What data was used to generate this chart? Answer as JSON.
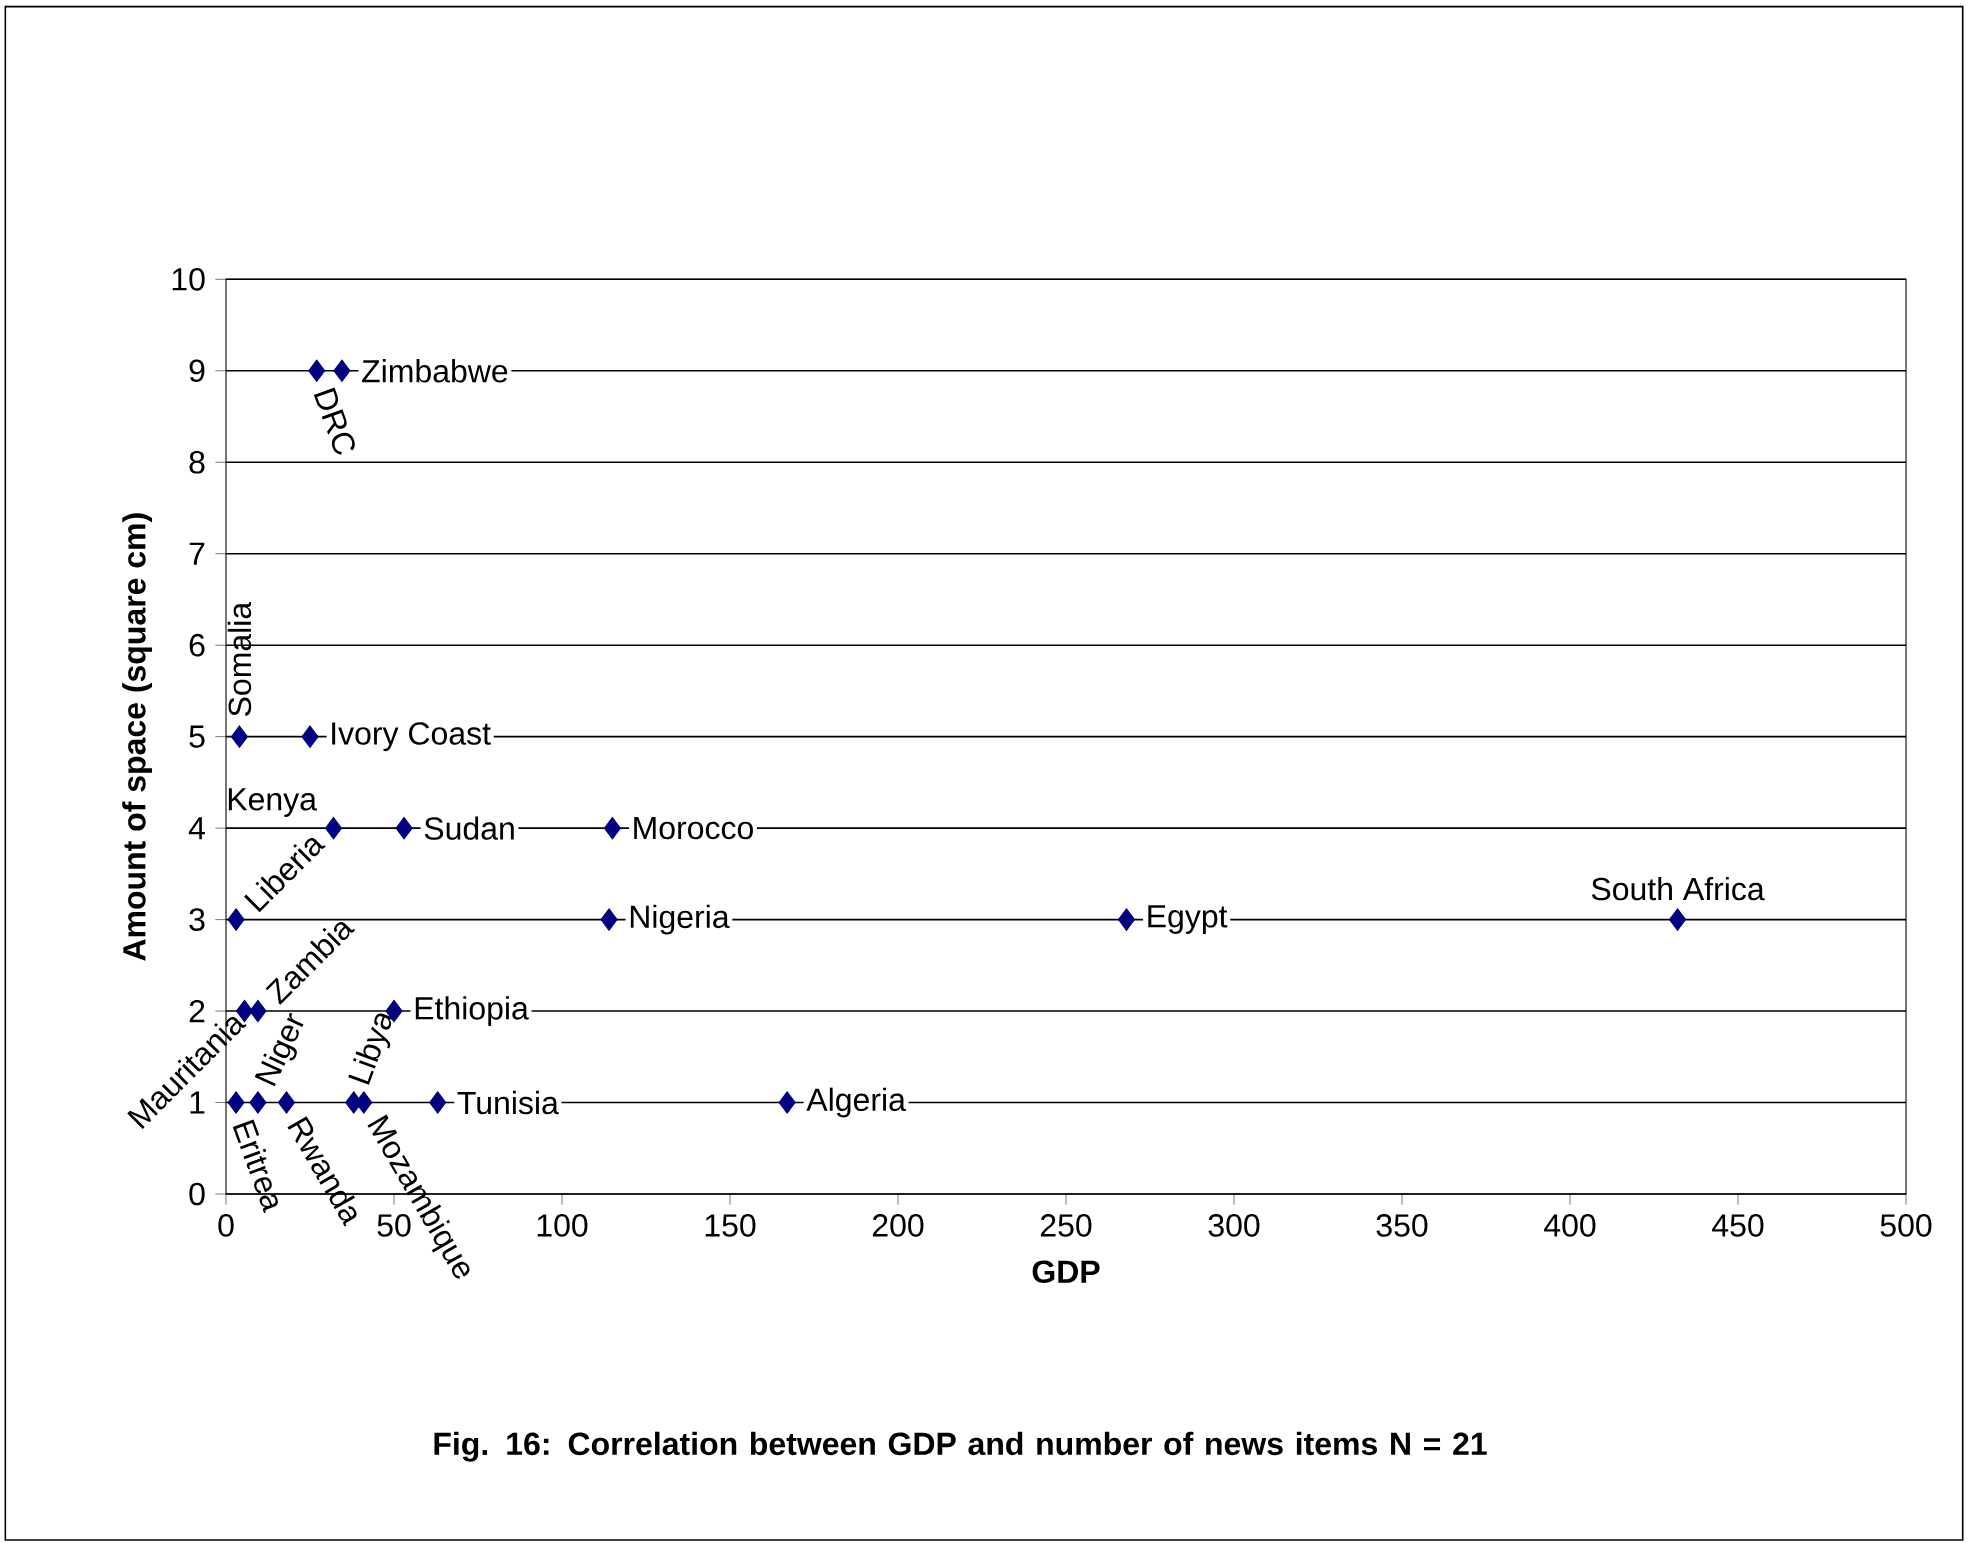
{
  "chart_data": {
    "type": "scatter",
    "xlabel": "GDP",
    "ylabel": "Amount of space (square cm)",
    "x": [
      27,
      34.5,
      4,
      25,
      32,
      53,
      115,
      3,
      114,
      268,
      432,
      5.5,
      9.5,
      50,
      3,
      9.5,
      18,
      38,
      41,
      63,
      167
    ],
    "values": [
      9,
      9,
      5,
      5,
      4,
      4,
      4,
      3,
      3,
      3,
      3,
      2,
      2,
      2,
      1,
      1,
      1,
      1,
      1,
      1,
      1
    ],
    "color": "#000080",
    "marker": "diamond",
    "grid": "y",
    "xlim": [
      0,
      500
    ],
    "xticks": [
      0,
      50,
      100,
      150,
      200,
      250,
      300,
      350,
      400,
      450,
      500
    ],
    "ylim": [
      0,
      10
    ],
    "yticks": [
      0,
      1,
      2,
      3,
      4,
      5,
      6,
      7,
      8,
      9,
      10
    ],
    "annotations": [
      {
        "text": "DRC",
        "x": 27,
        "y": 9
      },
      {
        "text": "Zimbabwe",
        "x": 34.5,
        "y": 9
      },
      {
        "text": "Somalia",
        "x": 4,
        "y": 5
      },
      {
        "text": "Ivory Coast",
        "x": 25,
        "y": 5
      },
      {
        "text": "Kenya",
        "x": 32,
        "y": 4
      },
      {
        "text": "Sudan",
        "x": 53,
        "y": 4
      },
      {
        "text": "Morocco",
        "x": 115,
        "y": 4
      },
      {
        "text": "Liberia",
        "x": 3,
        "y": 3
      },
      {
        "text": "Nigeria",
        "x": 114,
        "y": 3
      },
      {
        "text": "Egypt",
        "x": 268,
        "y": 3
      },
      {
        "text": "South Africa",
        "x": 432,
        "y": 3
      },
      {
        "text": "Mauritania",
        "x": 5.5,
        "y": 2
      },
      {
        "text": "Zambia",
        "x": 9.5,
        "y": 2
      },
      {
        "text": "Ethiopia",
        "x": 50,
        "y": 2
      },
      {
        "text": "Eritrea",
        "x": 3,
        "y": 1
      },
      {
        "text": "Niger",
        "x": 9.5,
        "y": 1
      },
      {
        "text": "Rwanda",
        "x": 18,
        "y": 1
      },
      {
        "text": "Libya",
        "x": 38,
        "y": 1
      },
      {
        "text": "Mozambique",
        "x": 41,
        "y": 1
      },
      {
        "text": "Tunisia",
        "x": 63,
        "y": 1
      },
      {
        "text": "Algeria",
        "x": 167,
        "y": 1
      },
      "Fig. 16: Correlation between GDP and number of news items N = 21"
    ]
  }
}
